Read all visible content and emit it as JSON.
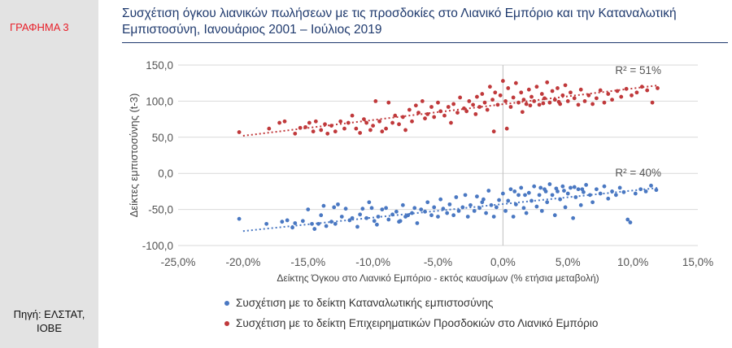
{
  "sidebar": {
    "graph_label": "ΓΡΑΦΗΜΑ 3",
    "source_line1": "Πηγή: ΕΛΣΤΑΤ,",
    "source_line2": "ΙΟΒΕ"
  },
  "colors": {
    "red": "#c0393b",
    "blue": "#4a78c2",
    "title": "#1f3a6e",
    "label": "#e8202a"
  },
  "chart_data": {
    "type": "scatter",
    "title_line1": "Συσχέτιση όγκου λιανικών πωλήσεων με τις προσδοκίες στο Λιανικό Εμπόριο και την Καταναλωτική",
    "title_line2": "Εμπιστοσύνη, Ιανουάριος 2001 – Ιούλιος 2019",
    "xlabel": "Δείκτης Όγκου στο Λιανικό Εμπόριο - εκτός καυσίμων (% ετήσια μεταβολή)",
    "ylabel": "Δείκτες εμπιστοσύνης (t-3)",
    "xlim": [
      -25,
      15
    ],
    "ylim": [
      -100,
      150
    ],
    "x_ticks": [
      "-25,0%",
      "-20,0%",
      "-15,0%",
      "-10,0%",
      "-5,0%",
      "0,0%",
      "5,0%",
      "10,0%",
      "15,0%"
    ],
    "y_ticks": [
      "150,0",
      "100,0",
      "50,0",
      "0,0",
      "-50,0",
      "-100,0"
    ],
    "grid": "horizontal",
    "series": [
      {
        "name": "Συσχέτιση με το δείκτη Καταναλωτικής εμπιστοσύνης",
        "color": "#4a78c2",
        "r2_label": "R² = 40%",
        "trend": {
          "x1": -20,
          "y1": -80,
          "x2": 12,
          "y2": -20
        },
        "points": [
          [
            -20.3,
            -63
          ],
          [
            -18.2,
            -70
          ],
          [
            -17.0,
            -67
          ],
          [
            -16.6,
            -65
          ],
          [
            -16.2,
            -75
          ],
          [
            -15.4,
            -66
          ],
          [
            -15.0,
            -50
          ],
          [
            -14.7,
            -70
          ],
          [
            -14.5,
            -77
          ],
          [
            -14.2,
            -70
          ],
          [
            -14.0,
            -58
          ],
          [
            -13.8,
            -45
          ],
          [
            -13.6,
            -73
          ],
          [
            -13.2,
            -67
          ],
          [
            -13.0,
            -47
          ],
          [
            -12.9,
            -70
          ],
          [
            -12.4,
            -60
          ],
          [
            -12.1,
            -49
          ],
          [
            -11.8,
            -65
          ],
          [
            -11.6,
            -62
          ],
          [
            -11.2,
            -74
          ],
          [
            -11.0,
            -57
          ],
          [
            -10.8,
            -49
          ],
          [
            -10.5,
            -62
          ],
          [
            -10.3,
            -40
          ],
          [
            -10.1,
            -48
          ],
          [
            -9.9,
            -66
          ],
          [
            -9.7,
            -71
          ],
          [
            -9.6,
            -60
          ],
          [
            -9.3,
            -50
          ],
          [
            -9.0,
            -48
          ],
          [
            -8.8,
            -64
          ],
          [
            -8.5,
            -57
          ],
          [
            -8.2,
            -53
          ],
          [
            -8.0,
            -67
          ],
          [
            -7.7,
            -44
          ],
          [
            -7.5,
            -60
          ],
          [
            -7.3,
            -58
          ],
          [
            -7.0,
            -55
          ],
          [
            -6.8,
            -48
          ],
          [
            -6.6,
            -69
          ],
          [
            -6.3,
            -50
          ],
          [
            -6.0,
            -53
          ],
          [
            -5.8,
            -40
          ],
          [
            -5.5,
            -58
          ],
          [
            -5.3,
            -47
          ],
          [
            -5.0,
            -60
          ],
          [
            -4.8,
            -36
          ],
          [
            -4.6,
            -49
          ],
          [
            -4.3,
            -55
          ],
          [
            -4.1,
            -43
          ],
          [
            -3.8,
            -58
          ],
          [
            -3.6,
            -33
          ],
          [
            -3.4,
            -52
          ],
          [
            -3.1,
            -47
          ],
          [
            -2.9,
            -30
          ],
          [
            -2.7,
            -60
          ],
          [
            -2.5,
            -44
          ],
          [
            -2.2,
            -52
          ],
          [
            -2.0,
            -32
          ],
          [
            -1.8,
            -48
          ],
          [
            -1.6,
            -40
          ],
          [
            -1.3,
            -55
          ],
          [
            -1.1,
            -24
          ],
          [
            -0.9,
            -44
          ],
          [
            -0.7,
            -60
          ],
          [
            -0.5,
            -47
          ],
          [
            -0.3,
            -37
          ],
          [
            0.0,
            -28
          ],
          [
            0.2,
            -52
          ],
          [
            0.4,
            -38
          ],
          [
            0.6,
            -22
          ],
          [
            0.8,
            -60
          ],
          [
            1.0,
            -43
          ],
          [
            1.2,
            -30
          ],
          [
            1.4,
            -20
          ],
          [
            1.6,
            -48
          ],
          [
            1.8,
            -55
          ],
          [
            2.0,
            -27
          ],
          [
            2.2,
            -38
          ],
          [
            2.4,
            -18
          ],
          [
            2.6,
            -46
          ],
          [
            2.8,
            -30
          ],
          [
            3.0,
            -52
          ],
          [
            3.2,
            -22
          ],
          [
            3.4,
            -40
          ],
          [
            3.6,
            -15
          ],
          [
            3.8,
            -30
          ],
          [
            4.0,
            -58
          ],
          [
            4.2,
            -25
          ],
          [
            4.4,
            -36
          ],
          [
            4.6,
            -18
          ],
          [
            4.8,
            -47
          ],
          [
            5.0,
            -28
          ],
          [
            5.2,
            -20
          ],
          [
            5.4,
            -62
          ],
          [
            5.6,
            -33
          ],
          [
            5.8,
            -22
          ],
          [
            6.0,
            -44
          ],
          [
            6.2,
            -26
          ],
          [
            6.4,
            -16
          ],
          [
            6.7,
            -30
          ],
          [
            6.9,
            -40
          ],
          [
            7.2,
            -22
          ],
          [
            7.5,
            -28
          ],
          [
            7.8,
            -18
          ],
          [
            8.1,
            -35
          ],
          [
            8.4,
            -25
          ],
          [
            8.7,
            -30
          ],
          [
            9.0,
            -20
          ],
          [
            9.3,
            -26
          ],
          [
            9.6,
            -64
          ],
          [
            9.8,
            -68
          ],
          [
            10.2,
            -28
          ],
          [
            10.6,
            -22
          ],
          [
            11.0,
            -25
          ],
          [
            11.4,
            -17
          ],
          [
            11.8,
            -23
          ],
          [
            2.9,
            -20
          ],
          [
            3.3,
            -25
          ],
          [
            4.1,
            -21
          ],
          [
            4.7,
            -24
          ],
          [
            5.5,
            -19
          ],
          [
            6.1,
            -22
          ],
          [
            0.9,
            -25
          ],
          [
            1.7,
            -30
          ],
          [
            -1.5,
            -36
          ],
          [
            -7.9,
            -66
          ],
          [
            -12.7,
            -43
          ],
          [
            -16.0,
            -69
          ]
        ]
      },
      {
        "name": "Συσχέτιση με το δείκτη Επιχειρηματικών Προσδοκιών στο Λιανικό Εμπόριο",
        "color": "#c0393b",
        "r2_label": "R² = 51%",
        "trend": {
          "x1": -20,
          "y1": 52,
          "x2": 12,
          "y2": 122
        },
        "points": [
          [
            -20.3,
            57
          ],
          [
            -18.0,
            62
          ],
          [
            -17.2,
            70
          ],
          [
            -16.8,
            72
          ],
          [
            -16.0,
            55
          ],
          [
            -15.6,
            63
          ],
          [
            -15.2,
            64
          ],
          [
            -14.9,
            70
          ],
          [
            -14.6,
            58
          ],
          [
            -14.4,
            72
          ],
          [
            -14.0,
            60
          ],
          [
            -13.7,
            68
          ],
          [
            -13.5,
            55
          ],
          [
            -13.2,
            66
          ],
          [
            -12.9,
            58
          ],
          [
            -12.5,
            72
          ],
          [
            -12.2,
            62
          ],
          [
            -11.9,
            70
          ],
          [
            -11.6,
            80
          ],
          [
            -11.3,
            62
          ],
          [
            -11.0,
            56
          ],
          [
            -10.7,
            75
          ],
          [
            -10.5,
            70
          ],
          [
            -10.2,
            60
          ],
          [
            -10.0,
            66
          ],
          [
            -9.8,
            100
          ],
          [
            -9.5,
            72
          ],
          [
            -9.3,
            58
          ],
          [
            -9.0,
            62
          ],
          [
            -8.8,
            98
          ],
          [
            -8.5,
            70
          ],
          [
            -8.3,
            80
          ],
          [
            -8.0,
            68
          ],
          [
            -7.7,
            78
          ],
          [
            -7.5,
            60
          ],
          [
            -7.2,
            88
          ],
          [
            -7.0,
            72
          ],
          [
            -6.7,
            94
          ],
          [
            -6.5,
            84
          ],
          [
            -6.2,
            100
          ],
          [
            -6.0,
            76
          ],
          [
            -5.8,
            82
          ],
          [
            -5.5,
            92
          ],
          [
            -5.3,
            78
          ],
          [
            -5.0,
            98
          ],
          [
            -4.8,
            86
          ],
          [
            -4.5,
            80
          ],
          [
            -4.2,
            92
          ],
          [
            -4.0,
            70
          ],
          [
            -3.8,
            96
          ],
          [
            -3.5,
            84
          ],
          [
            -3.3,
            105
          ],
          [
            -3.0,
            90
          ],
          [
            -2.8,
            86
          ],
          [
            -2.6,
            100
          ],
          [
            -2.3,
            95
          ],
          [
            -2.0,
            106
          ],
          [
            -1.8,
            92
          ],
          [
            -1.6,
            110
          ],
          [
            -1.4,
            98
          ],
          [
            -1.2,
            88
          ],
          [
            -1.0,
            120
          ],
          [
            -0.8,
            102
          ],
          [
            -0.6,
            112
          ],
          [
            -0.4,
            95
          ],
          [
            -0.2,
            108
          ],
          [
            0.0,
            128
          ],
          [
            0.2,
            100
          ],
          [
            0.4,
            118
          ],
          [
            0.6,
            92
          ],
          [
            0.8,
            105
          ],
          [
            1.0,
            125
          ],
          [
            1.2,
            98
          ],
          [
            1.4,
            112
          ],
          [
            1.6,
            102
          ],
          [
            1.8,
            96
          ],
          [
            2.0,
            116
          ],
          [
            2.2,
            106
          ],
          [
            2.4,
            100
          ],
          [
            2.6,
            120
          ],
          [
            2.8,
            95
          ],
          [
            3.0,
            110
          ],
          [
            3.2,
            104
          ],
          [
            3.4,
            126
          ],
          [
            3.6,
            98
          ],
          [
            3.8,
            114
          ],
          [
            4.0,
            102
          ],
          [
            4.2,
            118
          ],
          [
            4.4,
            96
          ],
          [
            4.6,
            108
          ],
          [
            4.8,
            122
          ],
          [
            5.0,
            100
          ],
          [
            5.2,
            112
          ],
          [
            5.5,
            104
          ],
          [
            5.8,
            95
          ],
          [
            6.0,
            116
          ],
          [
            6.3,
            100
          ],
          [
            6.6,
            108
          ],
          [
            6.9,
            96
          ],
          [
            7.2,
            104
          ],
          [
            7.5,
            115
          ],
          [
            7.8,
            98
          ],
          [
            8.1,
            110
          ],
          [
            8.4,
            102
          ],
          [
            8.8,
            114
          ],
          [
            9.1,
            106
          ],
          [
            9.5,
            117
          ],
          [
            9.9,
            108
          ],
          [
            10.3,
            112
          ],
          [
            10.7,
            120
          ],
          [
            11.1,
            115
          ],
          [
            11.5,
            98
          ],
          [
            11.9,
            118
          ],
          [
            2.1,
            94
          ],
          [
            3.1,
            97
          ],
          [
            4.3,
            99
          ],
          [
            -0.7,
            58
          ],
          [
            0.3,
            62
          ],
          [
            1.5,
            85
          ],
          [
            -2.1,
            82
          ]
        ]
      }
    ]
  }
}
